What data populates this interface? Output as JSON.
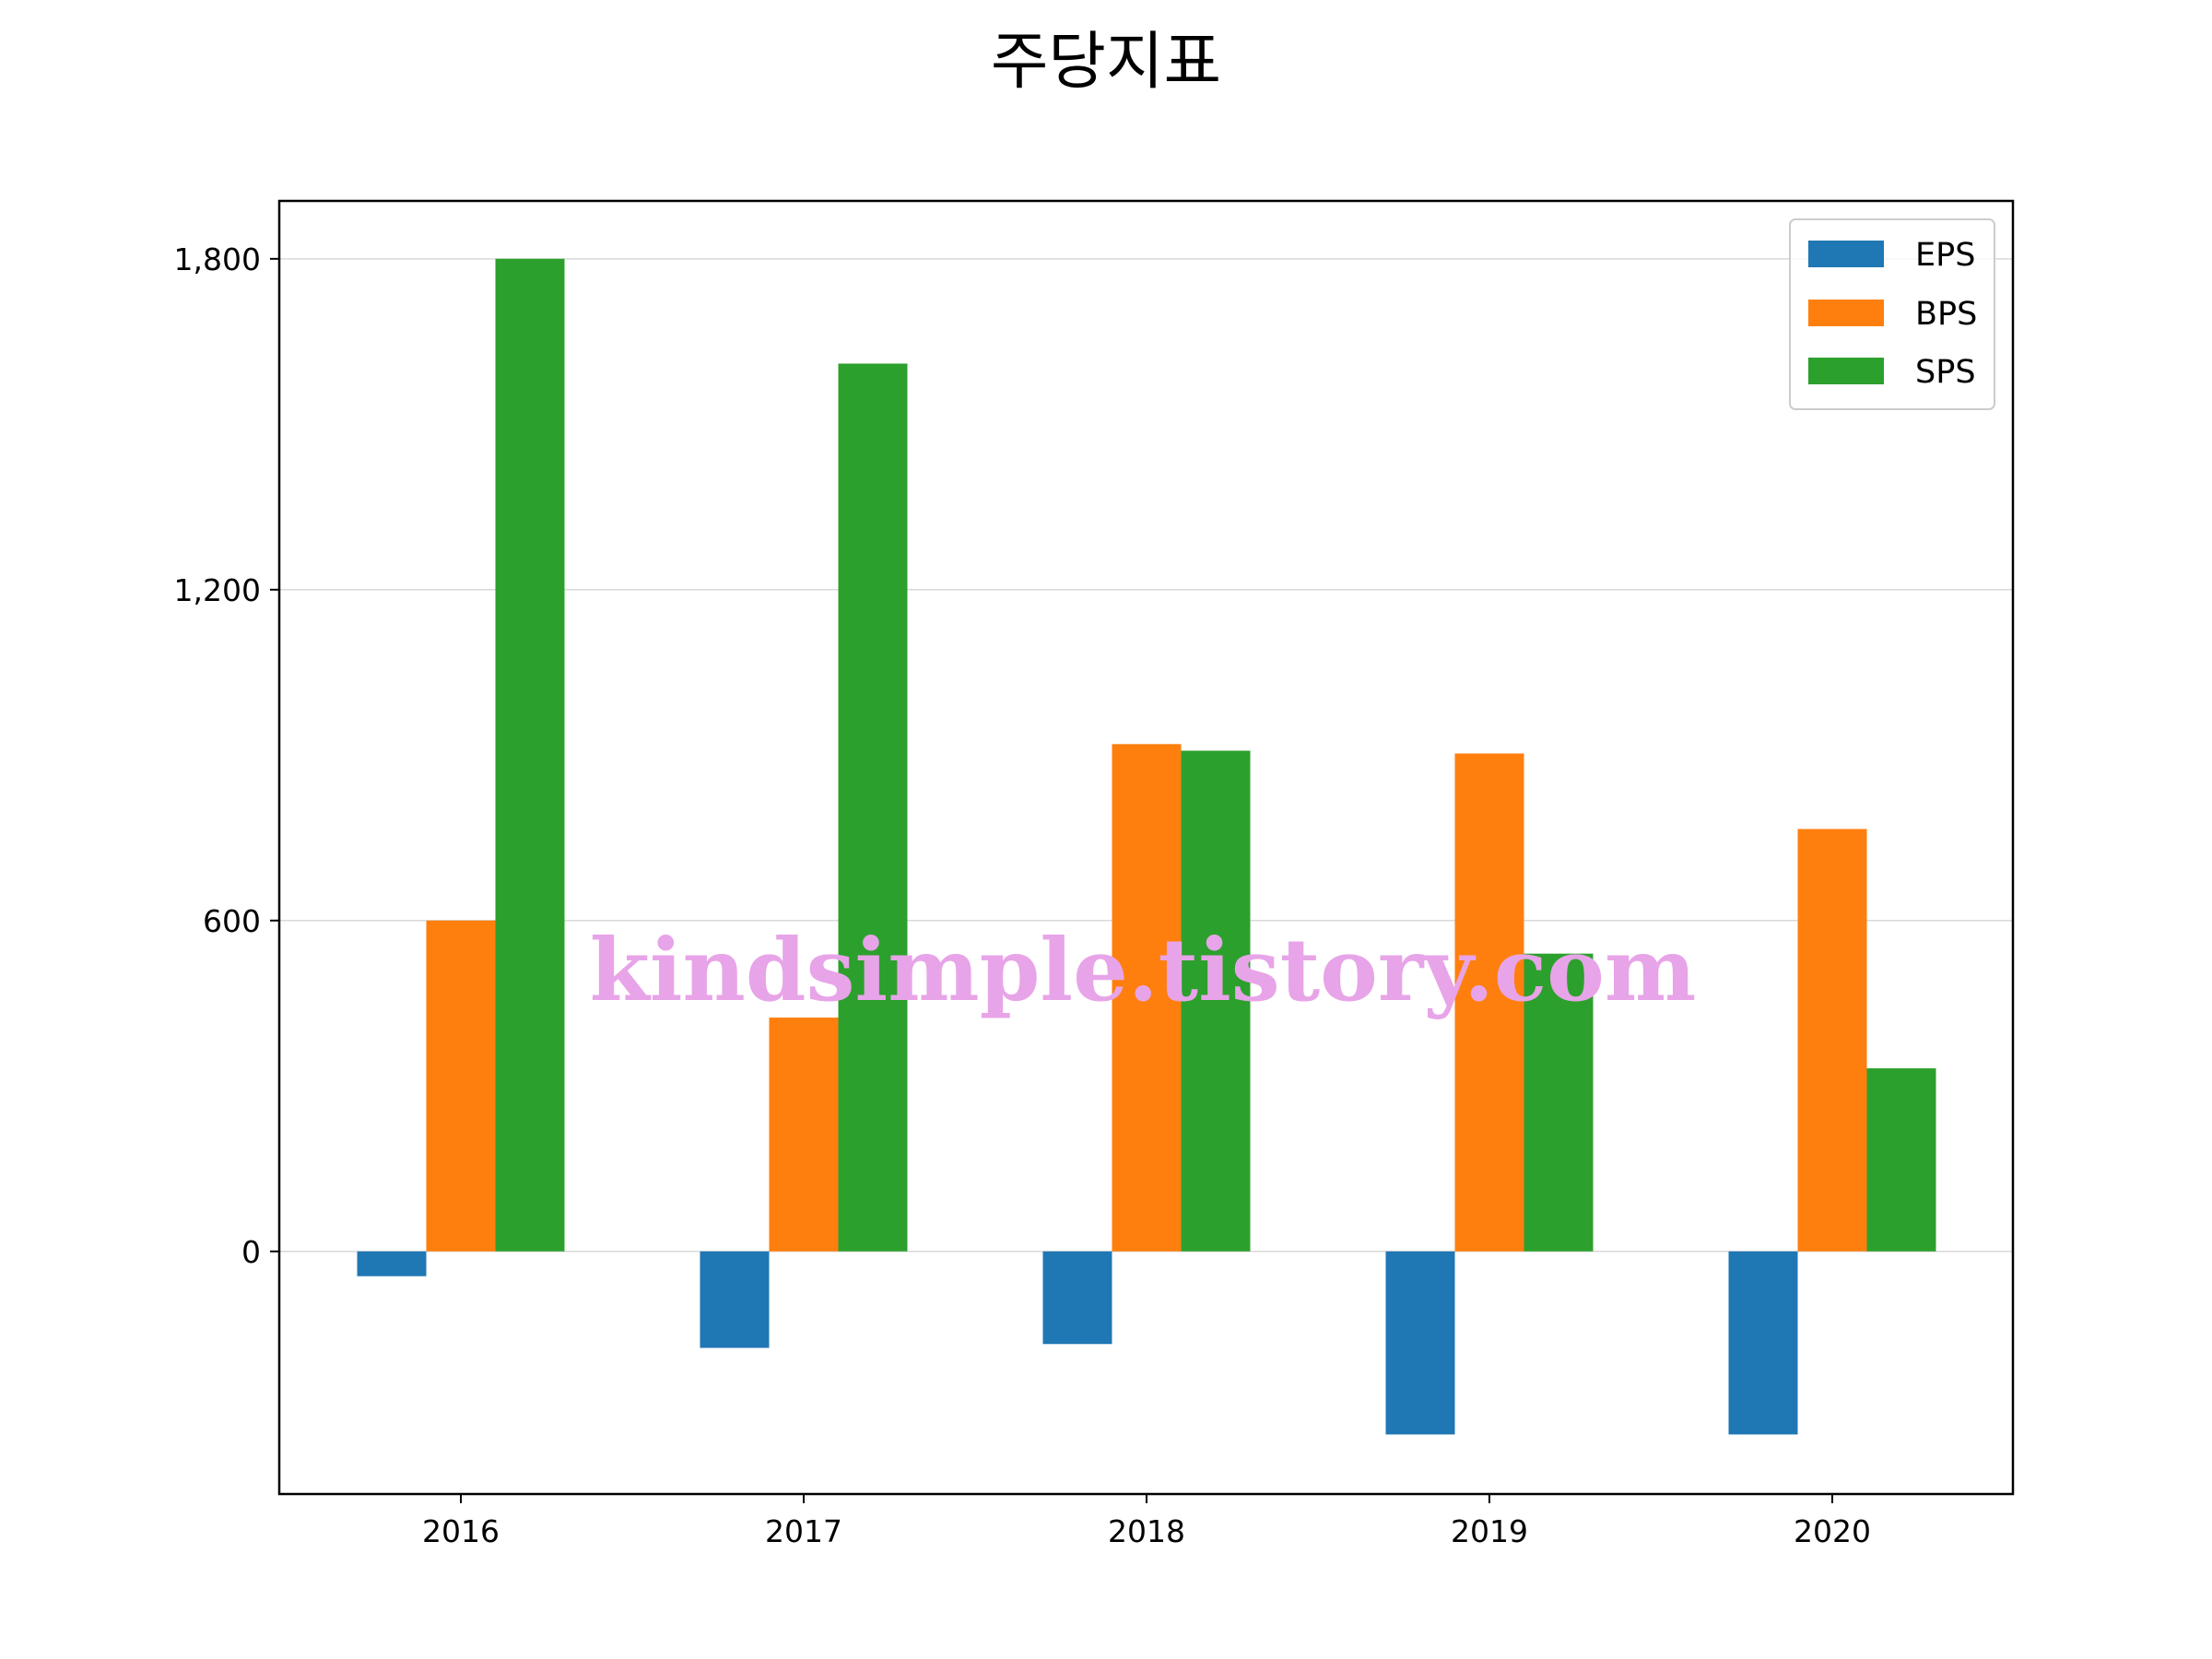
{
  "chart_data": {
    "type": "bar",
    "title": "주당지표",
    "xlabel": "",
    "ylabel": "",
    "categories": [
      "2016",
      "2017",
      "2018",
      "2019",
      "2020"
    ],
    "series": [
      {
        "name": "EPS",
        "color": "#1f77b4",
        "values": [
          -45,
          -175,
          -168,
          -332,
          -332
        ]
      },
      {
        "name": "BPS",
        "color": "#ff7f0e",
        "values": [
          600,
          424,
          920,
          903,
          766
        ]
      },
      {
        "name": "SPS",
        "color": "#2ca02c",
        "values": [
          1800,
          1610,
          908,
          540,
          332
        ]
      }
    ],
    "ylim": [
      -440,
      1905
    ],
    "yticks": [
      0,
      600,
      1200,
      1800
    ],
    "ytick_labels": [
      "0",
      "600",
      "1,200",
      "1,800"
    ],
    "grid": "horizontal",
    "legend_position": "top-right"
  },
  "watermark": {
    "text": "kindsimple.tistory.com",
    "color": "#e8a4e8"
  }
}
